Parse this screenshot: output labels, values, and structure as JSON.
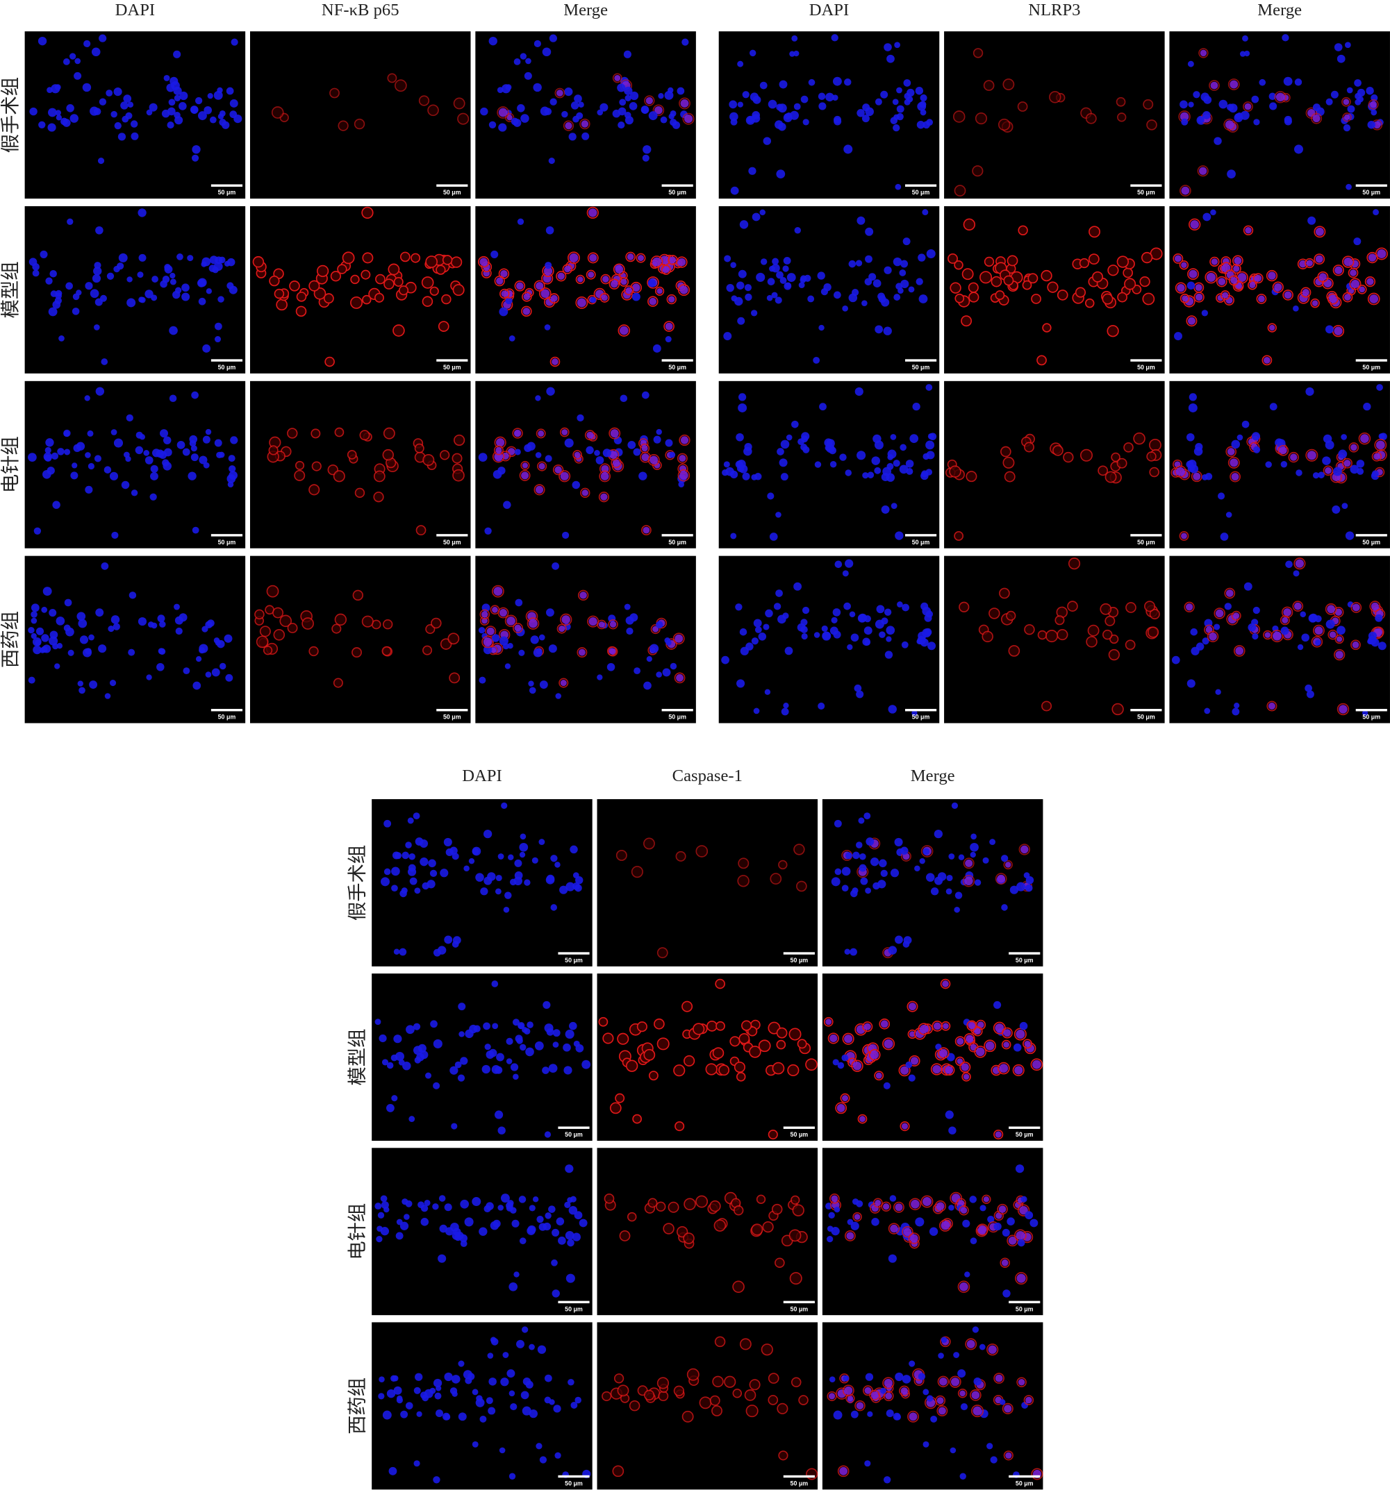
{
  "groups": [
    {
      "columns": [
        "DAPI",
        "NF-κB p65",
        "Merge"
      ],
      "rows": [
        "假手术组",
        "模型组",
        "电针组",
        "西药组"
      ],
      "scale_bar": "50 μm"
    },
    {
      "columns": [
        "DAPI",
        "NLRP3",
        "Merge"
      ],
      "scale_bar": "50 μm"
    },
    {
      "columns": [
        "DAPI",
        "Caspase-1",
        "Merge"
      ],
      "rows": [
        "假手术组",
        "模型组",
        "电针组",
        "西药组"
      ],
      "scale_bar": "50 μm"
    }
  ]
}
